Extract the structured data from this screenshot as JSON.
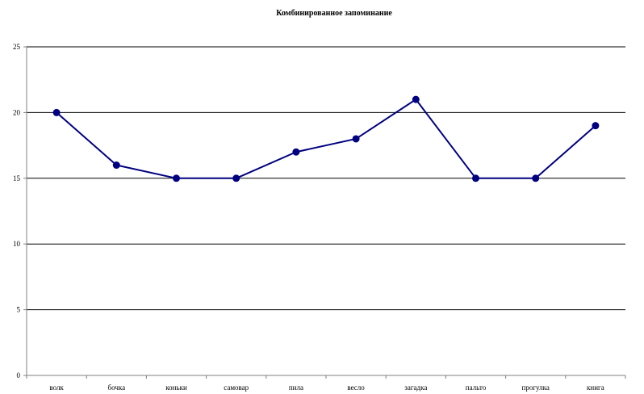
{
  "chart_data": {
    "type": "line",
    "title": "Комбинированное запоминание",
    "xlabel": "",
    "ylabel": "",
    "categories": [
      "волк",
      "бочка",
      "коньки",
      "самовар",
      "пила",
      "весло",
      "загадка",
      "пальто",
      "прогулка",
      "книга"
    ],
    "series": [
      {
        "values": [
          20,
          16,
          15,
          15,
          17,
          18,
          21,
          15,
          15,
          19
        ]
      }
    ],
    "ylim": [
      0,
      25
    ],
    "yticks": [
      0,
      5,
      10,
      15,
      20,
      25
    ],
    "grid": "horizontal",
    "legend": "none",
    "colors": {
      "line": "#000080",
      "marker": "#000080",
      "grid": "#000000",
      "axis": "#808080"
    }
  }
}
